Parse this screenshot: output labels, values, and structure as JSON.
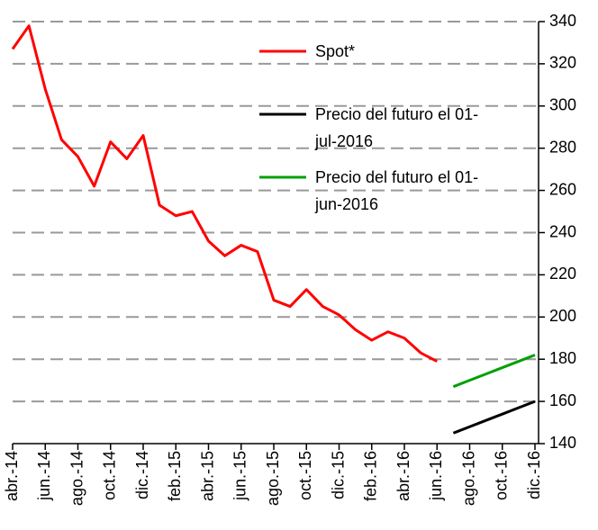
{
  "chart_data": {
    "type": "line",
    "categories": [
      "abr.-14",
      null,
      "jun.-14",
      null,
      "ago.-14",
      null,
      "oct.-14",
      null,
      "dic.-14",
      null,
      "feb.-15",
      null,
      "abr.-15",
      null,
      "jun.-15",
      null,
      "ago.-15",
      null,
      "oct.-15",
      null,
      "dic.-15",
      null,
      "feb.-16",
      null,
      "abr.-16",
      null,
      "jun.-16",
      null,
      "ago.-16",
      null,
      "oct.-16",
      null,
      "dic.-16"
    ],
    "series": [
      {
        "name": "Spot*",
        "color": "#ff0000",
        "values": [
          327,
          338,
          308,
          284,
          276,
          262,
          283,
          275,
          286,
          253,
          248,
          250,
          236,
          229,
          234,
          231,
          208,
          205,
          213,
          205,
          201,
          194,
          189,
          193,
          190,
          183,
          179,
          null,
          null,
          null,
          null,
          null,
          null
        ]
      },
      {
        "name": "Precio del futuro el 01-jul-2016",
        "color": "#000000",
        "values": [
          null,
          null,
          null,
          null,
          null,
          null,
          null,
          null,
          null,
          null,
          null,
          null,
          null,
          null,
          null,
          null,
          null,
          null,
          null,
          null,
          null,
          null,
          null,
          null,
          null,
          null,
          null,
          145,
          148,
          151,
          154,
          157,
          160
        ]
      },
      {
        "name": "Precio del futuro el 01-jun-2016",
        "color": "#00a000",
        "values": [
          null,
          null,
          null,
          null,
          null,
          null,
          null,
          null,
          null,
          null,
          null,
          null,
          null,
          null,
          null,
          null,
          null,
          null,
          null,
          null,
          null,
          null,
          null,
          null,
          null,
          null,
          null,
          167,
          170,
          173,
          176,
          179,
          182
        ]
      }
    ],
    "ylim": [
      140,
      340
    ],
    "yticks": [
      140,
      160,
      180,
      200,
      220,
      240,
      260,
      280,
      300,
      320,
      340
    ],
    "grid": true,
    "y_axis_side": "right"
  }
}
